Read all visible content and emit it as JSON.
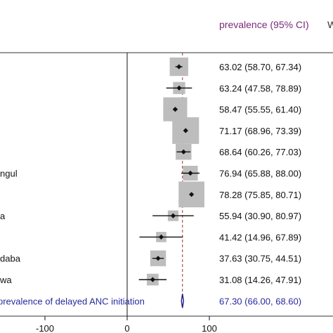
{
  "header": {
    "estimate_col": "prevalence (95% CI)",
    "weight_col_partial": "W"
  },
  "chart_data": {
    "type": "forest",
    "xlim": [
      -140,
      150
    ],
    "xticks": [
      -100,
      0,
      100
    ],
    "xtick_labels": [
      "-100",
      "0",
      "100"
    ],
    "reference_line": 0,
    "pooled_line": 67.3,
    "studies": [
      {
        "label": "",
        "est": 63.02,
        "lo": 58.7,
        "hi": 67.34,
        "text": "63.02 (58.70, 67.34)",
        "w": 0.55
      },
      {
        "label": "",
        "est": 63.24,
        "lo": 47.58,
        "hi": 78.89,
        "text": "63.24 (47.58, 78.89)",
        "w": 0.2
      },
      {
        "label": "",
        "est": 58.47,
        "lo": 55.55,
        "hi": 61.4,
        "text": "58.47 (55.55, 61.40)",
        "w": 0.85
      },
      {
        "label": "",
        "est": 71.17,
        "lo": 68.96,
        "hi": 73.39,
        "text": "71.17 (68.96, 73.39)",
        "w": 1.0
      },
      {
        "label": "",
        "est": 68.64,
        "lo": 60.26,
        "hi": 77.03,
        "text": "68.64 (60.26, 77.03)",
        "w": 0.4
      },
      {
        "label": "ngul",
        "est": 76.94,
        "lo": 65.88,
        "hi": 88.0,
        "text": "76.94 (65.88, 88.00)",
        "w": 0.35
      },
      {
        "label": "",
        "est": 78.28,
        "lo": 75.85,
        "hi": 80.71,
        "text": "78.28 (75.85, 80.71)",
        "w": 0.95
      },
      {
        "label": "a",
        "est": 55.94,
        "lo": 30.9,
        "hi": 80.97,
        "text": "55.94 (30.90, 80.97)",
        "w": 0.12
      },
      {
        "label": "",
        "est": 41.42,
        "lo": 14.96,
        "hi": 67.89,
        "text": "41.42 (14.96, 67.89)",
        "w": 0.1
      },
      {
        "label": "daba",
        "est": 37.63,
        "lo": 30.75,
        "hi": 44.51,
        "text": "37.63 (30.75, 44.51)",
        "w": 0.4
      },
      {
        "label": "wa",
        "est": 31.08,
        "lo": 14.26,
        "hi": 47.91,
        "text": "31.08 (14.26, 47.91)",
        "w": 0.18
      }
    ],
    "pooled": {
      "label": "prevalence of delayed ANC initiation",
      "est": 67.3,
      "lo": 66.0,
      "hi": 68.6,
      "text": "67.30 (66.00, 68.60)"
    }
  }
}
